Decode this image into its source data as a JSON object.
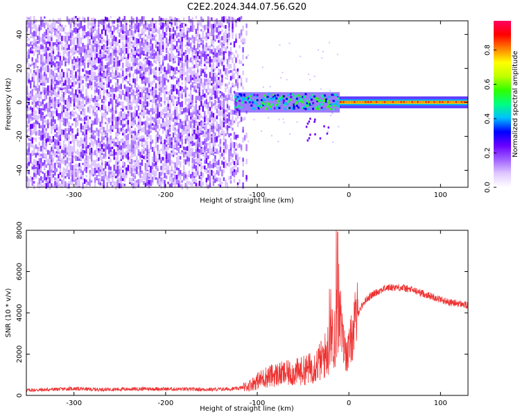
{
  "title": "C2E2.2024.344.07.56.G20",
  "chart_data": [
    {
      "type": "heatmap",
      "xlabel": "Height of straight line (km)",
      "ylabel": "Frequency (Hz)",
      "xlim": [
        -352,
        130
      ],
      "ylim": [
        -50,
        48
      ],
      "x_ticks": [
        -300,
        -200,
        -100,
        0,
        100
      ],
      "y_ticks": [
        -40,
        -20,
        0,
        20,
        40
      ],
      "colorbar": {
        "label": "Normalized spectral amplitude",
        "range": [
          0,
          0.97
        ],
        "ticks": [
          0.0,
          0.2,
          0.4,
          0.6,
          0.8
        ],
        "colormap": [
          "#ffffff",
          "#e0c8ff",
          "#a060ff",
          "#6a00ff",
          "#0000ff",
          "#00c0ff",
          "#00ff80",
          "#30ff00",
          "#c0ff00",
          "#ffff00",
          "#ff8000",
          "#ff0000",
          "#ff0060"
        ]
      },
      "regions": [
        {
          "x_range": [
            -352,
            -112
          ],
          "freq_range": [
            -50,
            48
          ],
          "typical_amplitude": 0.05,
          "description_kind": "broadband noise"
        },
        {
          "x_range": [
            -125,
            -10
          ],
          "freq_range": [
            -5,
            6
          ],
          "typical_amplitude": 0.4
        },
        {
          "x_range": [
            -10,
            130
          ],
          "freq_range": [
            -2,
            2
          ],
          "typical_amplitude": 0.85
        }
      ],
      "grid": false
    },
    {
      "type": "line",
      "xlabel": "Height of straight line (km)",
      "ylabel": "SNR (10 * v/v)",
      "xlim": [
        -352,
        130
      ],
      "ylim": [
        0,
        8000
      ],
      "x_ticks": [
        -300,
        -200,
        -100,
        0,
        100
      ],
      "y_ticks": [
        0,
        2000,
        4000,
        6000,
        8000
      ],
      "line_color": "#ee3333",
      "series": [
        {
          "x": [
            -352,
            -330,
            -300,
            -280,
            -250,
            -220,
            -200,
            -180,
            -150,
            -130,
            -120,
            -110,
            -100,
            -90,
            -80,
            -70,
            -60,
            -50,
            -40,
            -30,
            -25,
            -20,
            -15,
            -12,
            -10,
            -8,
            -5,
            -2,
            0,
            5,
            10,
            15,
            20,
            30,
            40,
            50,
            60,
            70,
            80,
            90,
            100,
            110,
            120,
            125,
            130
          ],
          "y": [
            250,
            280,
            330,
            290,
            300,
            320,
            310,
            300,
            290,
            310,
            340,
            450,
            700,
            900,
            1000,
            1050,
            1100,
            1200,
            1350,
            1700,
            2000,
            2600,
            3000,
            3800,
            4600,
            3000,
            2300,
            2000,
            2200,
            3200,
            4000,
            4400,
            4700,
            5000,
            5200,
            5250,
            5200,
            5100,
            4950,
            4800,
            4650,
            4500,
            4450,
            4400,
            4350
          ]
        }
      ],
      "grid": false
    }
  ]
}
